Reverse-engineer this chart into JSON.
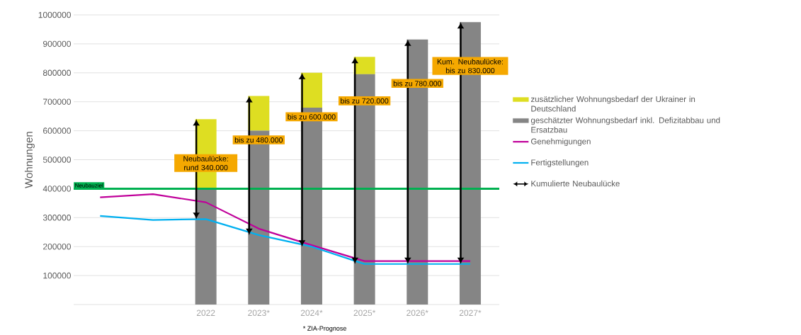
{
  "chart_data": {
    "type": "bar",
    "ylabel": "Wohnungen",
    "categories": [
      null,
      null,
      "2022",
      "2023*",
      "2024*",
      "2025*",
      "2026*",
      "2027*"
    ],
    "stacked": true,
    "series": [
      {
        "name": "geschätzter Wohnungsbedarf inkl. Defizitabbau und Ersatzbau",
        "color": "#858585",
        "values": [
          null,
          null,
          400000,
          600000,
          680000,
          795000,
          915000,
          975000
        ]
      },
      {
        "name": "zusätzlicher Wohnungsbedarf der Ukrainer in Deutschland",
        "color": "#dede22",
        "values": [
          null,
          null,
          240000,
          120000,
          120000,
          60000,
          0,
          0
        ]
      },
      {
        "name": "Genehmigungen",
        "type": "line",
        "color": "#c0009a",
        "values": [
          370000,
          381000,
          353000,
          262000,
          205000,
          150000,
          150000,
          150000
        ]
      },
      {
        "name": "Fertigstellungen",
        "type": "line",
        "color": "#00b0f0",
        "values": [
          306000,
          292000,
          295000,
          240000,
          200000,
          140000,
          140000,
          140000
        ]
      }
    ],
    "ylim": [
      0,
      1000000
    ],
    "yticks": [
      100000,
      200000,
      300000,
      400000,
      500000,
      600000,
      700000,
      800000,
      900000,
      1000000
    ],
    "grid": "y",
    "legend": "right",
    "marker": "none",
    "ref_lines": [
      {
        "axis": "y",
        "value": 400000,
        "label": "Neubauziel",
        "color": "#00b050"
      }
    ],
    "annotations": [
      "Neubaulücke: rund 340.000",
      "bis zu 480.000",
      "bis zu 600.000",
      "bis zu 720.000",
      "bis zu 780.000",
      "Kum. Neubaulücke: bis zu 830.000",
      "Kumulierte Neubaulücke",
      "* ZIA-Prognose"
    ]
  }
}
